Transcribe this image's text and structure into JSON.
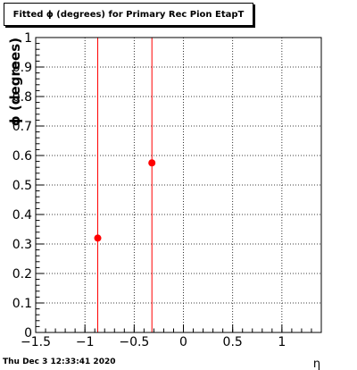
{
  "chart_data": {
    "type": "scatter",
    "title": "Fitted ϕ (degrees) for Primary Rec Pion EtapT",
    "xlabel": "η",
    "ylabel": "ϕ (degrees)",
    "xlim": [
      -1.5,
      1.4
    ],
    "ylim": [
      0,
      1
    ],
    "x_ticks": [
      -1.5,
      -1,
      -0.5,
      0,
      0.5,
      1
    ],
    "x_tick_labels": [
      "−1.5",
      "−1",
      "−0.5",
      "0",
      "0.5",
      "1"
    ],
    "y_ticks": [
      0,
      0.1,
      0.2,
      0.3,
      0.4,
      0.5,
      0.6,
      0.7,
      0.8,
      0.9,
      1
    ],
    "y_tick_labels": [
      "0",
      "0.1",
      "0.2",
      "0.3",
      "0.4",
      "0.5",
      "0.6",
      "0.7",
      "0.8",
      "0.9",
      "1"
    ],
    "grid": true,
    "points": [
      {
        "x": -0.87,
        "y": 0.32,
        "yerr": 1
      },
      {
        "x": -0.32,
        "y": 0.575,
        "yerr": 1
      }
    ],
    "marker_color": "#ff0000"
  },
  "footer": {
    "timestamp": "Thu Dec  3 12:33:41 2020"
  }
}
